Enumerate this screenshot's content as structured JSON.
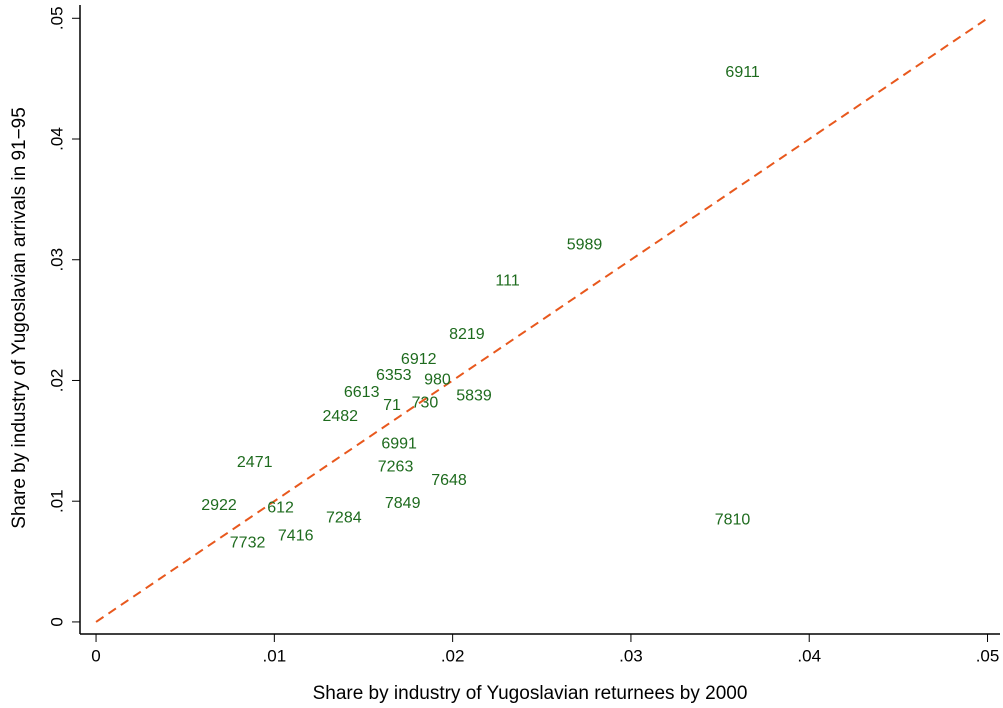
{
  "chart_data": {
    "type": "scatter",
    "x_label": "Share by industry of Yugoslavian returnees by 2000",
    "y_label": "Share by industry of Yugoslavian arrivals in 91−95",
    "xlim": [
      -0.0009,
      0.0507
    ],
    "ylim": [
      -0.001,
      0.0511
    ],
    "xticks": [
      0,
      {
        "value": 0.01,
        "label": ".01"
      },
      {
        "value": 0.02,
        "label": ".02"
      },
      {
        "value": 0.03,
        "label": ".03"
      },
      {
        "value": 0.04,
        "label": ".04"
      },
      {
        "value": 0.05,
        "label": ".05"
      }
    ],
    "yticks": [
      0,
      {
        "value": 0.01,
        "label": ".01"
      },
      {
        "value": 0.02,
        "label": ".02"
      },
      {
        "value": 0.03,
        "label": ".03"
      },
      {
        "value": 0.04,
        "label": ".04"
      },
      {
        "value": 0.05,
        "label": ".05"
      }
    ],
    "series": [
      {
        "color": "#1e6b1e",
        "labels": [
          "6911",
          "5989",
          "111",
          "8219",
          "6912",
          "6353",
          "980",
          "5839",
          "6613",
          "71",
          "730",
          "2482",
          "6991",
          "2471",
          "7263",
          "7648",
          "7849",
          "7810",
          "2922",
          "612",
          "7284",
          "7416",
          "7732"
        ],
        "x": [
          0.0353,
          0.0264,
          0.0224,
          0.0198,
          0.0171,
          0.0157,
          0.0184,
          0.0202,
          0.0139,
          0.0161,
          0.0177,
          0.0127,
          0.016,
          0.0079,
          0.0158,
          0.0188,
          0.0162,
          0.0347,
          0.0059,
          0.0096,
          0.0129,
          0.0102,
          0.0075
        ],
        "values": [
          0.0455,
          0.0312,
          0.0282,
          0.0238,
          0.0217,
          0.0204,
          0.02,
          0.0187,
          0.019,
          0.0179,
          0.0181,
          0.017,
          0.0147,
          0.0132,
          0.0128,
          0.0117,
          0.0098,
          0.0084,
          0.0096,
          0.0094,
          0.0086,
          0.0071,
          0.0065
        ]
      }
    ],
    "reference_line": {
      "x": [
        0,
        0.05
      ],
      "y": [
        0,
        0.05
      ],
      "color": "#e8581d",
      "dashed": true
    }
  }
}
